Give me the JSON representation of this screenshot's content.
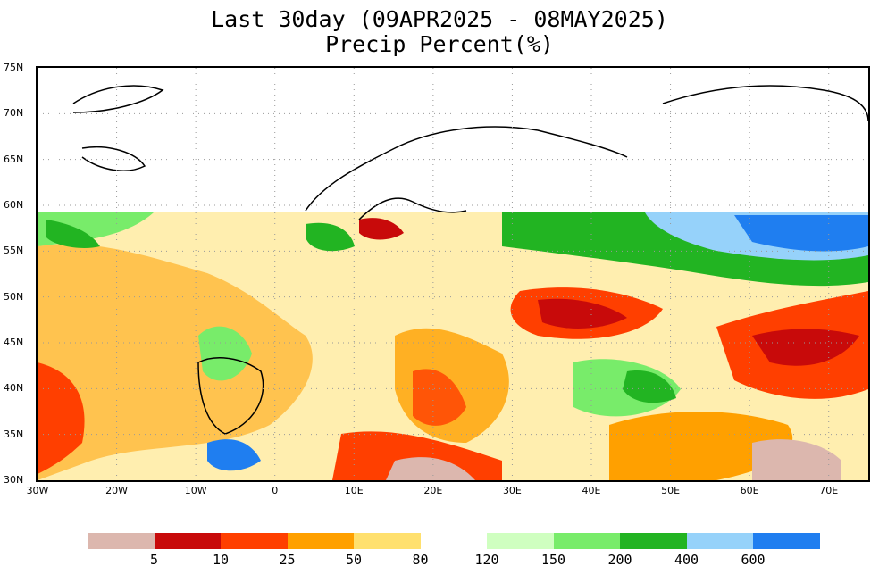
{
  "title": {
    "line1": "Last 30day (09APR2025 - 08MAY2025)",
    "line2": "Precip Percent(%)"
  },
  "axes": {
    "lat_labels": [
      "75N",
      "70N",
      "65N",
      "60N",
      "55N",
      "50N",
      "45N",
      "40N",
      "35N",
      "30N"
    ],
    "lat_values": [
      75,
      70,
      65,
      60,
      55,
      50,
      45,
      40,
      35,
      30
    ],
    "lon_labels": [
      "30W",
      "20W",
      "10W",
      "0",
      "10E",
      "20E",
      "30E",
      "40E",
      "50E",
      "60E",
      "70E"
    ],
    "lon_values": [
      -30,
      -20,
      -10,
      0,
      10,
      20,
      30,
      40,
      50,
      60,
      70
    ],
    "lon_range": [
      -30,
      75
    ],
    "lat_range": [
      30,
      75
    ],
    "grid": "dotted"
  },
  "colorbar": {
    "dry_colors": [
      "#dcb7ae",
      "#c80a0a",
      "#ff3f00",
      "#ffa000",
      "#ffe06e"
    ],
    "wet_colors": [
      "#cfffc0",
      "#78ec6a",
      "#22b422",
      "#96d2fa",
      "#1f7ef0"
    ],
    "dry_labels": [
      "5",
      "10",
      "25",
      "50",
      "80"
    ],
    "wet_labels": [
      "120",
      "150",
      "200",
      "400",
      "600"
    ]
  }
}
